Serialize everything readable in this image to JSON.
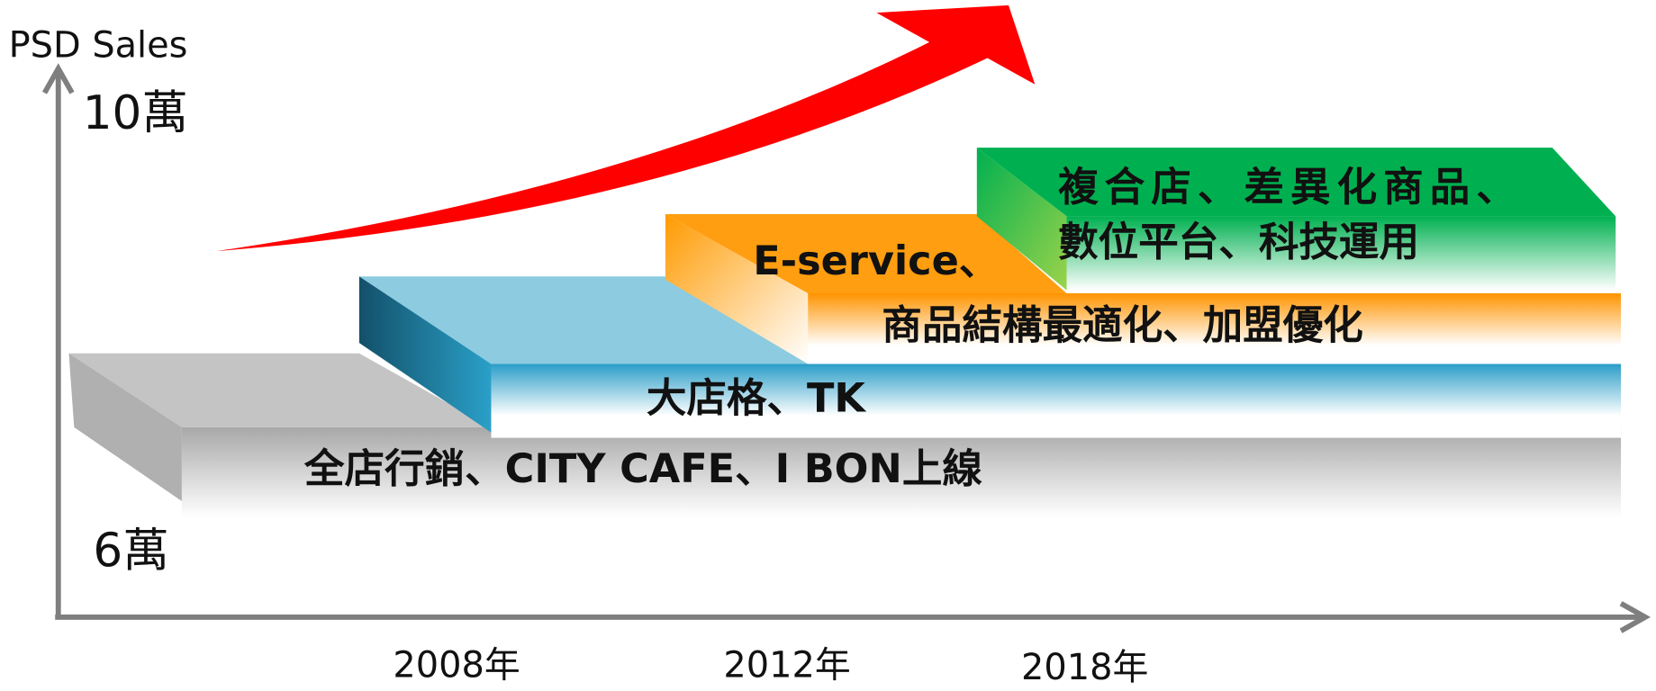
{
  "y_axis": {
    "title": "PSD Sales",
    "top_label": "10萬",
    "bottom_label": "6萬"
  },
  "x_axis": {
    "labels": [
      "2008年",
      "2012年",
      "2018年"
    ]
  },
  "steps": [
    {
      "lines": [
        "全店行銷、CITY CAFE、I BON上線"
      ]
    },
    {
      "lines": [
        "大店格、TK"
      ]
    },
    {
      "lines": [
        "E-service、",
        "商品結構最適化、加盟優化"
      ]
    },
    {
      "lines": [
        "複合店、差異化商品、",
        "數位平台、科技運用"
      ]
    }
  ]
}
